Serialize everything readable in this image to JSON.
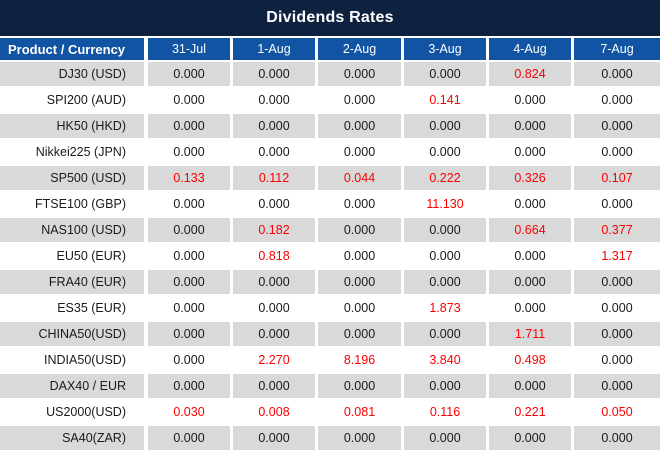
{
  "title": "Dividends Rates",
  "colors": {
    "title_bg": "#0E2240",
    "header_bg": "#1254A4",
    "row_shaded_bg": "#D9D9D9",
    "row_plain_bg": "#FFFFFF",
    "header_text": "#FFFFFF",
    "value_text": "#1A1A1A",
    "value_highlight": "#FB0000"
  },
  "chart_data": {
    "type": "table",
    "title": "Dividends Rates",
    "columns": [
      "Product / Currency",
      "31-Jul",
      "1-Aug",
      "2-Aug",
      "3-Aug",
      "4-Aug",
      "7-Aug"
    ],
    "rows": [
      {
        "product": "DJ30 (USD)",
        "values": [
          "0.000",
          "0.000",
          "0.000",
          "0.000",
          "0.824",
          "0.000"
        ],
        "red_flags": [
          false,
          false,
          false,
          false,
          true,
          false
        ]
      },
      {
        "product": "SPI200 (AUD)",
        "values": [
          "0.000",
          "0.000",
          "0.000",
          "0.141",
          "0.000",
          "0.000"
        ],
        "red_flags": [
          false,
          false,
          false,
          true,
          false,
          false
        ]
      },
      {
        "product": "HK50 (HKD)",
        "values": [
          "0.000",
          "0.000",
          "0.000",
          "0.000",
          "0.000",
          "0.000"
        ],
        "red_flags": [
          false,
          false,
          false,
          false,
          false,
          false
        ]
      },
      {
        "product": "Nikkei225 (JPN)",
        "values": [
          "0.000",
          "0.000",
          "0.000",
          "0.000",
          "0.000",
          "0.000"
        ],
        "red_flags": [
          false,
          false,
          false,
          false,
          false,
          false
        ]
      },
      {
        "product": "SP500 (USD)",
        "values": [
          "0.133",
          "0.112",
          "0.044",
          "0.222",
          "0.326",
          "0.107"
        ],
        "red_flags": [
          true,
          true,
          true,
          true,
          true,
          true
        ]
      },
      {
        "product": "FTSE100 (GBP)",
        "values": [
          "0.000",
          "0.000",
          "0.000",
          "11.130",
          "0.000",
          "0.000"
        ],
        "red_flags": [
          false,
          false,
          false,
          true,
          false,
          false
        ]
      },
      {
        "product": "NAS100 (USD)",
        "values": [
          "0.000",
          "0.182",
          "0.000",
          "0.000",
          "0.664",
          "0.377"
        ],
        "red_flags": [
          false,
          true,
          false,
          false,
          true,
          true
        ]
      },
      {
        "product": "EU50 (EUR)",
        "values": [
          "0.000",
          "0.818",
          "0.000",
          "0.000",
          "0.000",
          "1.317"
        ],
        "red_flags": [
          false,
          true,
          false,
          false,
          false,
          true
        ]
      },
      {
        "product": "FRA40 (EUR)",
        "values": [
          "0.000",
          "0.000",
          "0.000",
          "0.000",
          "0.000",
          "0.000"
        ],
        "red_flags": [
          false,
          false,
          false,
          false,
          false,
          false
        ]
      },
      {
        "product": "ES35 (EUR)",
        "values": [
          "0.000",
          "0.000",
          "0.000",
          "1.873",
          "0.000",
          "0.000"
        ],
        "red_flags": [
          false,
          false,
          false,
          true,
          false,
          false
        ]
      },
      {
        "product": "CHINA50(USD)",
        "values": [
          "0.000",
          "0.000",
          "0.000",
          "0.000",
          "1.711",
          "0.000"
        ],
        "red_flags": [
          false,
          false,
          false,
          false,
          true,
          false
        ]
      },
      {
        "product": "INDIA50(USD)",
        "values": [
          "0.000",
          "2.270",
          "8.196",
          "3.840",
          "0.498",
          "0.000"
        ],
        "red_flags": [
          false,
          true,
          true,
          true,
          true,
          false
        ]
      },
      {
        "product": "DAX40 / EUR",
        "values": [
          "0.000",
          "0.000",
          "0.000",
          "0.000",
          "0.000",
          "0.000"
        ],
        "red_flags": [
          false,
          false,
          false,
          false,
          false,
          false
        ]
      },
      {
        "product": "US2000(USD)",
        "values": [
          "0.030",
          "0.008",
          "0.081",
          "0.116",
          "0.221",
          "0.050"
        ],
        "red_flags": [
          true,
          true,
          true,
          true,
          true,
          true
        ]
      },
      {
        "product": "SA40(ZAR)",
        "values": [
          "0.000",
          "0.000",
          "0.000",
          "0.000",
          "0.000",
          "0.000"
        ],
        "red_flags": [
          false,
          false,
          false,
          false,
          false,
          false
        ]
      }
    ]
  }
}
